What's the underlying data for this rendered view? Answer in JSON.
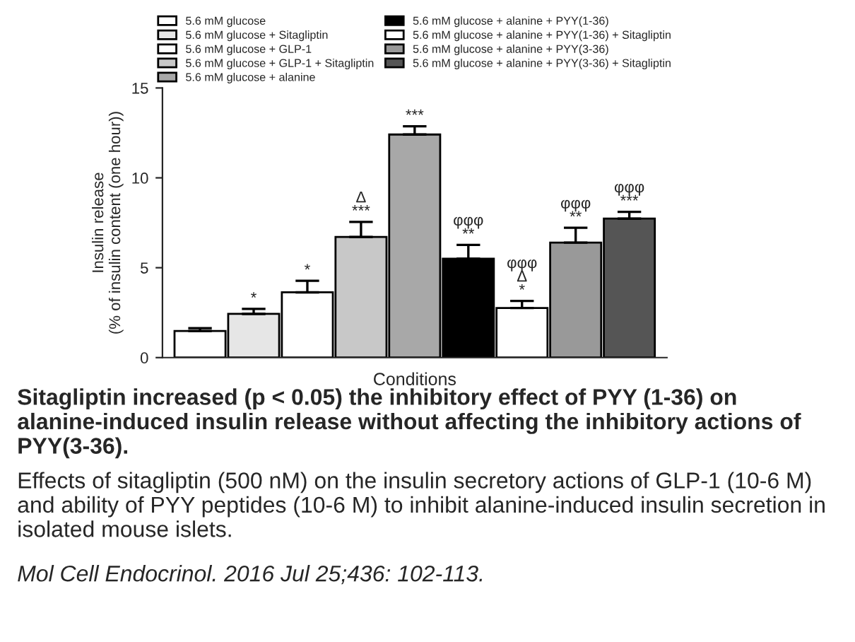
{
  "chart_data": {
    "type": "bar",
    "xlabel": "Conditions",
    "ylabel": "Insulin release\n(% of insulin content (one hour))",
    "categories": [
      null,
      null,
      null,
      null,
      null,
      null,
      null,
      null,
      null
    ],
    "ylim": [
      0,
      15
    ],
    "yticks": [
      0,
      5,
      10,
      15
    ],
    "grid": false,
    "legend": "top",
    "series": [
      {
        "name": "5.6 mM glucose",
        "color": "#ffffff",
        "values": [
          1.48,
          null,
          null,
          null,
          null,
          null,
          null,
          null,
          null
        ],
        "errors": [
          [
            1.48,
            1.64
          ],
          null,
          null,
          null,
          null,
          null,
          null,
          null,
          null
        ],
        "value_labels": [
          null,
          null,
          null,
          null,
          null,
          null,
          null,
          null,
          null
        ]
      },
      {
        "name": "5.6 mM glucose + Sitagliptin",
        "color": "#e6e6e6",
        "values": [
          null,
          2.43,
          null,
          null,
          null,
          null,
          null,
          null,
          null
        ],
        "errors": [
          null,
          [
            2.43,
            2.71
          ],
          null,
          null,
          null,
          null,
          null,
          null,
          null
        ],
        "value_labels": [
          null,
          "*",
          null,
          null,
          null,
          null,
          null,
          null,
          null
        ]
      },
      {
        "name": "5.6 mM glucose + GLP-1",
        "color": "#ffffff",
        "values": [
          null,
          null,
          3.63,
          null,
          null,
          null,
          null,
          null,
          null
        ],
        "errors": [
          null,
          null,
          [
            3.63,
            4.27
          ],
          null,
          null,
          null,
          null,
          null,
          null
        ],
        "value_labels": [
          null,
          null,
          "*",
          null,
          null,
          null,
          null,
          null,
          null
        ]
      },
      {
        "name": "5.6 mM glucose + GLP-1 + Sitagliptin",
        "color": "#c8c8c8",
        "values": [
          null,
          null,
          null,
          6.71,
          null,
          null,
          null,
          null,
          null
        ],
        "errors": [
          null,
          null,
          null,
          [
            6.71,
            7.55
          ],
          null,
          null,
          null,
          null,
          null
        ],
        "value_labels": [
          null,
          null,
          null,
          "Δ\n***",
          null,
          null,
          null,
          null,
          null
        ]
      },
      {
        "name": "5.6 mM glucose + alanine",
        "color": "#a8a8a8",
        "values": [
          null,
          null,
          null,
          null,
          12.41,
          null,
          null,
          null,
          null
        ],
        "errors": [
          null,
          null,
          null,
          null,
          [
            12.41,
            12.87
          ],
          null,
          null,
          null,
          null
        ],
        "value_labels": [
          null,
          null,
          null,
          null,
          "***",
          null,
          null,
          null,
          null
        ]
      },
      {
        "name": "5.6 mM glucose + alanine + PYY(1-36)",
        "color": "#000000",
        "values": [
          null,
          null,
          null,
          null,
          null,
          5.5,
          null,
          null,
          null
        ],
        "errors": [
          null,
          null,
          null,
          null,
          null,
          [
            5.5,
            6.27
          ],
          null,
          null,
          null
        ],
        "value_labels": [
          null,
          null,
          null,
          null,
          null,
          "φφφ\n**",
          null,
          null,
          null
        ]
      },
      {
        "name": "5.6 mM glucose + alanine + PYY(1-36) + Sitagliptin",
        "color": "#ffffff",
        "values": [
          null,
          null,
          null,
          null,
          null,
          null,
          2.76,
          null,
          null
        ],
        "errors": [
          null,
          null,
          null,
          null,
          null,
          null,
          [
            2.76,
            3.15
          ],
          null,
          null
        ],
        "value_labels": [
          null,
          null,
          null,
          null,
          null,
          null,
          "φφφ\nΔ\n*",
          null,
          null
        ]
      },
      {
        "name": "5.6 mM glucose + alanine + PYY(3-36)",
        "color": "#999999",
        "values": [
          null,
          null,
          null,
          null,
          null,
          null,
          null,
          6.4,
          null
        ],
        "errors": [
          null,
          null,
          null,
          null,
          null,
          null,
          null,
          [
            6.4,
            7.22
          ],
          null
        ],
        "value_labels": [
          null,
          null,
          null,
          null,
          null,
          null,
          null,
          "φφφ\n**",
          null
        ]
      },
      {
        "name": "5.6 mM glucose + alanine + PYY(3-36) + Sitagliptin",
        "color": "#555555",
        "values": [
          null,
          null,
          null,
          null,
          null,
          null,
          null,
          null,
          7.73
        ],
        "errors": [
          null,
          null,
          null,
          null,
          null,
          null,
          null,
          null,
          [
            7.73,
            8.11
          ]
        ],
        "value_labels": [
          null,
          null,
          null,
          null,
          null,
          null,
          null,
          null,
          "φφφ\n***"
        ]
      }
    ],
    "annotations": [
      "Sitagliptin increased (p < 0.05) the inhibitory effect of PYY (1-36) on alanine-induced insulin release without affecting the inhibitory actions of PYY(3-36).",
      "Effects of sitagliptin (500 nM) on the insulin secretory actions of GLP-1 (10-6 M) and ability of PYY peptides (10-6 M) to inhibit alanine-induced insulin secretion in isolated mouse islets.",
      "Mol Cell Endocrinol. 2016 Jul 25;436: 102-113."
    ]
  }
}
